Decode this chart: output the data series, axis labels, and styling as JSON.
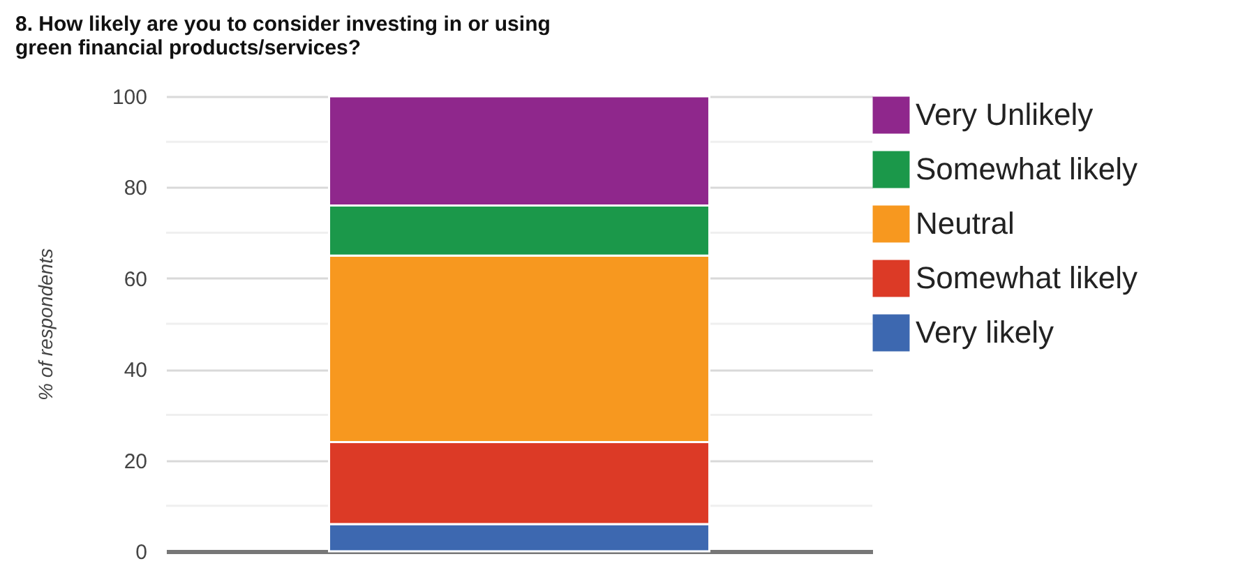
{
  "chart_data": {
    "type": "bar",
    "title": "8. How likely are you to consider investing in or using green financial products/services?",
    "ylabel": "% of respondents",
    "categories": [
      null
    ],
    "stacked": true,
    "series": [
      {
        "name": "Very likely",
        "color": "#3d68b0",
        "values": [
          6
        ]
      },
      {
        "name": "Somewhat likely",
        "color": "#dc3a26",
        "values": [
          18
        ]
      },
      {
        "name": "Neutral",
        "color": "#f7981f",
        "values": [
          41
        ]
      },
      {
        "name": "Somewhat likely",
        "color": "#1b984a",
        "values": [
          11
        ]
      },
      {
        "name": "Very Unlikely",
        "color": "#8f278c",
        "values": [
          24
        ]
      }
    ],
    "ylim": [
      0,
      100
    ],
    "yticks": [
      0,
      {
        "value": 10,
        "label": null
      },
      20,
      {
        "value": 30,
        "label": null
      },
      40,
      {
        "value": 50,
        "label": null
      },
      60,
      {
        "value": 70,
        "label": null
      },
      80,
      {
        "value": 90,
        "label": null
      },
      100
    ],
    "grid": "y",
    "legend": "right",
    "tick_labels": "y"
  }
}
